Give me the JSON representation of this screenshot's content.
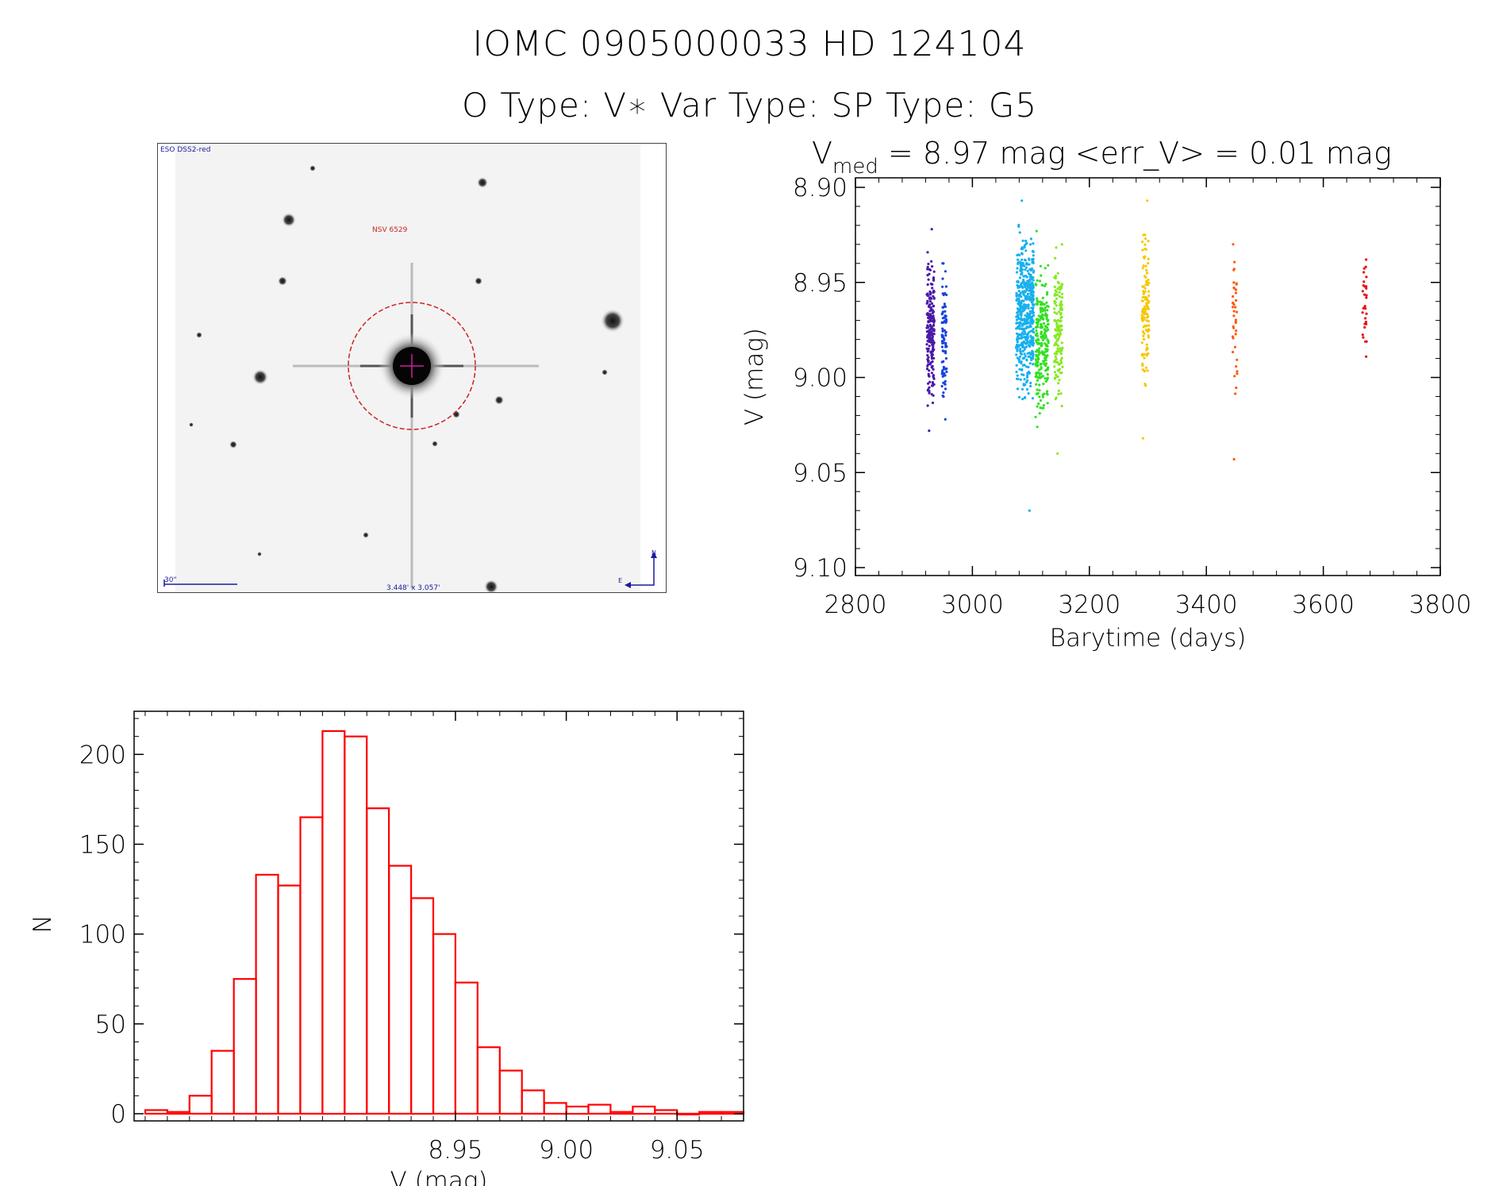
{
  "header": {
    "title_line1": "IOMC 0905000033    HD 124104",
    "title_line2": "O Type: V∗  Var Type:    SP Type: G5"
  },
  "thumbnail": {
    "survey_label": "ESO DSS2-red",
    "object_label": "NSV 6529",
    "scale_label": "30\"",
    "size_label": "3.448' x 3.057'",
    "north_label": "N",
    "east_label": "E"
  },
  "colors": {
    "histogram": "#ff0000",
    "circle": "#cc2222",
    "dss_text": "#1a1aa0",
    "obj_text": "#cc2222"
  },
  "chart_data": [
    {
      "type": "scatter",
      "title": "V_med = 8.97 mag <err_V> = 0.01 mag",
      "title_main": "V",
      "title_sub": "med",
      "title_rest": " = 8.97 mag <err_V> = 0.01 mag",
      "xlabel": "Barytime (days)",
      "ylabel": "V (mag)",
      "xlim": [
        2800,
        3800
      ],
      "ylim": [
        9.1,
        8.9
      ],
      "x_ticks": [
        "2800",
        "3000",
        "3200",
        "3400",
        "3600",
        "3800"
      ],
      "y_ticks": [
        "8.90",
        "8.95",
        "9.00",
        "9.05",
        "9.10"
      ],
      "series": [
        {
          "name": "2922-2935",
          "color": "#4a1aa8",
          "x_range": [
            2922,
            2935
          ],
          "v_range": [
            8.922,
            9.028
          ],
          "n": 220,
          "center": 8.976,
          "spread": 0.016
        },
        {
          "name": "2948-2956",
          "color": "#1a44e0",
          "x_range": [
            2948,
            2956
          ],
          "v_range": [
            8.94,
            9.022
          ],
          "n": 90,
          "center": 8.978,
          "spread": 0.016
        },
        {
          "name": "3075-3105",
          "color": "#18b0ee",
          "x_range": [
            3075,
            3105
          ],
          "v_range": [
            8.907,
            9.07
          ],
          "n": 520,
          "center": 8.966,
          "spread": 0.018
        },
        {
          "name": "3108-3130",
          "color": "#33e022",
          "x_range": [
            3108,
            3130
          ],
          "v_range": [
            8.923,
            9.026
          ],
          "n": 240,
          "center": 8.982,
          "spread": 0.016
        },
        {
          "name": "3140-3154",
          "color": "#88e822",
          "x_range": [
            3140,
            3154
          ],
          "v_range": [
            8.93,
            9.04
          ],
          "n": 150,
          "center": 8.976,
          "spread": 0.016
        },
        {
          "name": "3290-3302",
          "color": "#f6c800",
          "x_range": [
            3290,
            3302
          ],
          "v_range": [
            8.907,
            9.032
          ],
          "n": 130,
          "center": 8.966,
          "spread": 0.018
        },
        {
          "name": "3445-3453",
          "color": "#ff5a10",
          "x_range": [
            3445,
            3453
          ],
          "v_range": [
            8.93,
            9.043
          ],
          "n": 40,
          "center": 8.975,
          "spread": 0.018
        },
        {
          "name": "3667-3675",
          "color": "#e81010",
          "x_range": [
            3667,
            3675
          ],
          "v_range": [
            8.938,
            8.989
          ],
          "n": 30,
          "center": 8.962,
          "spread": 0.012
        }
      ]
    },
    {
      "type": "bar",
      "xlabel": "V (mag)",
      "ylabel": "N",
      "xlim": [
        8.805,
        9.08
      ],
      "ylim": [
        -4,
        224
      ],
      "x_ticks": [
        "8.95",
        "9.00",
        "9.05"
      ],
      "y_ticks": [
        "0",
        "50",
        "100",
        "150",
        "200"
      ],
      "bin_width": 0.01,
      "bin_starts": [
        8.81,
        8.82,
        8.83,
        8.84,
        8.85,
        8.86,
        8.87,
        8.88,
        8.89,
        8.9,
        8.91,
        8.92,
        8.93,
        8.94,
        8.95,
        8.96,
        8.97,
        8.98,
        8.99,
        9.0,
        9.01,
        9.02,
        9.03,
        9.04,
        9.05,
        9.06,
        9.07
      ],
      "values": [
        2,
        1,
        10,
        35,
        75,
        133,
        127,
        165,
        213,
        210,
        170,
        138,
        120,
        100,
        73,
        37,
        24,
        13,
        6,
        4,
        5,
        1,
        4,
        2,
        0,
        1,
        1
      ]
    }
  ]
}
